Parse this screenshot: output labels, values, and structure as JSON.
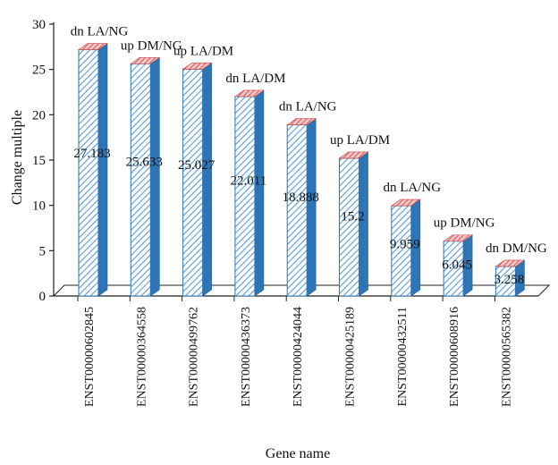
{
  "chart_data": {
    "type": "bar",
    "title": "",
    "xlabel": "Gene name",
    "ylabel": "Change multiple",
    "ylim": [
      0,
      30
    ],
    "yticks": [
      0,
      5,
      10,
      15,
      20,
      25,
      30
    ],
    "grid": false,
    "legend": "none",
    "categories": [
      "ENST00000602845",
      "ENST00000364558",
      "ENST00000499762",
      "ENST00000436373",
      "ENST00000424044",
      "ENST00000425189",
      "ENST00000432511",
      "ENST00000608916",
      "ENST00000565382"
    ],
    "values": [
      27.183,
      25.633,
      25.027,
      22.011,
      18.888,
      15.2,
      9.959,
      6.045,
      3.258
    ],
    "value_labels": [
      "27.183",
      "25.633",
      "25.027",
      "22.011",
      "18.888",
      "15.2",
      "9.959",
      "6.045",
      "3.258"
    ],
    "annotations": [
      "dn LA/NG",
      "up DM/NG",
      "up LA/DM",
      "dn LA/DM",
      "dn LA/NG",
      "up LA/DM",
      "dn LA/NG",
      "up DM/NG",
      "dn DM/NG"
    ],
    "colors": {
      "bar_front_hatch": "#5b9bd5",
      "bar_side": "#2e75b6",
      "bar_top": "#e07a7a",
      "floor": "#ffffff",
      "axis": "#222222"
    }
  }
}
